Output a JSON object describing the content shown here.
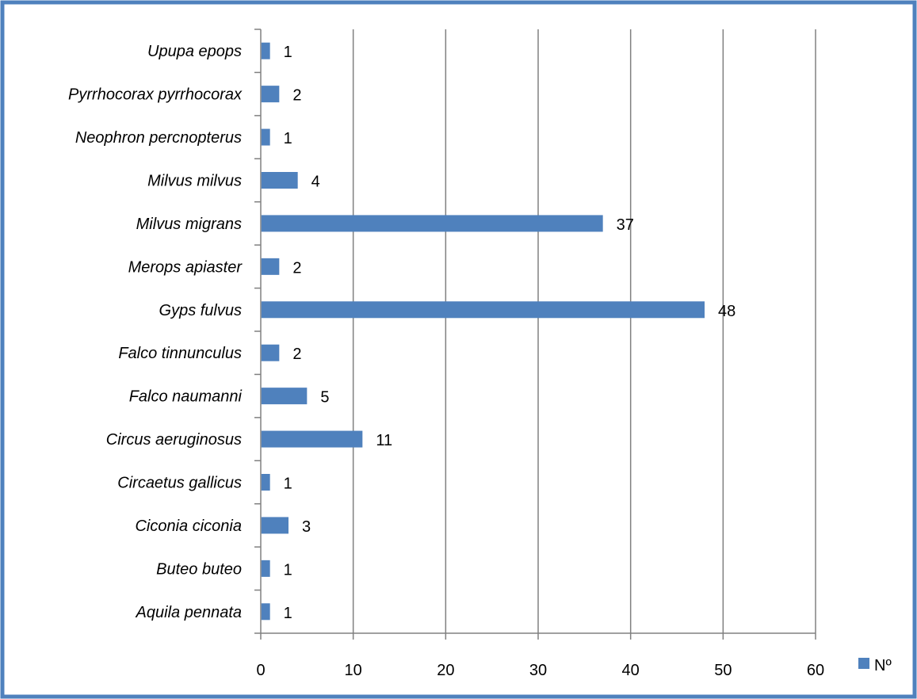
{
  "colors": {
    "frame": "#4f81bd",
    "bar": "#4f81bd",
    "grid": "#808080",
    "axis": "#808080",
    "text": "#000000"
  },
  "chart_data": {
    "type": "bar",
    "orientation": "horizontal",
    "categories": [
      "Upupa epops",
      "Pyrrhocorax pyrrhocorax",
      "Neophron percnopterus",
      "Milvus milvus",
      "Milvus migrans",
      "Merops apiaster",
      "Gyps fulvus",
      "Falco tinnunculus",
      "Falco naumanni",
      "Circus aeruginosus",
      "Circaetus gallicus",
      "Ciconia ciconia",
      "Buteo buteo",
      "Aquila pennata"
    ],
    "series": [
      {
        "name": "Nº",
        "values": [
          1,
          2,
          1,
          4,
          37,
          2,
          48,
          2,
          5,
          11,
          1,
          3,
          1,
          1
        ]
      }
    ],
    "title": "",
    "xlabel": "",
    "ylabel": "",
    "xlim": [
      0,
      60
    ],
    "xticks": [
      "0",
      "10",
      "20",
      "30",
      "40",
      "50",
      "60"
    ],
    "grid": "vertical major gridlines",
    "data_labels": true,
    "legend_position": "right"
  }
}
